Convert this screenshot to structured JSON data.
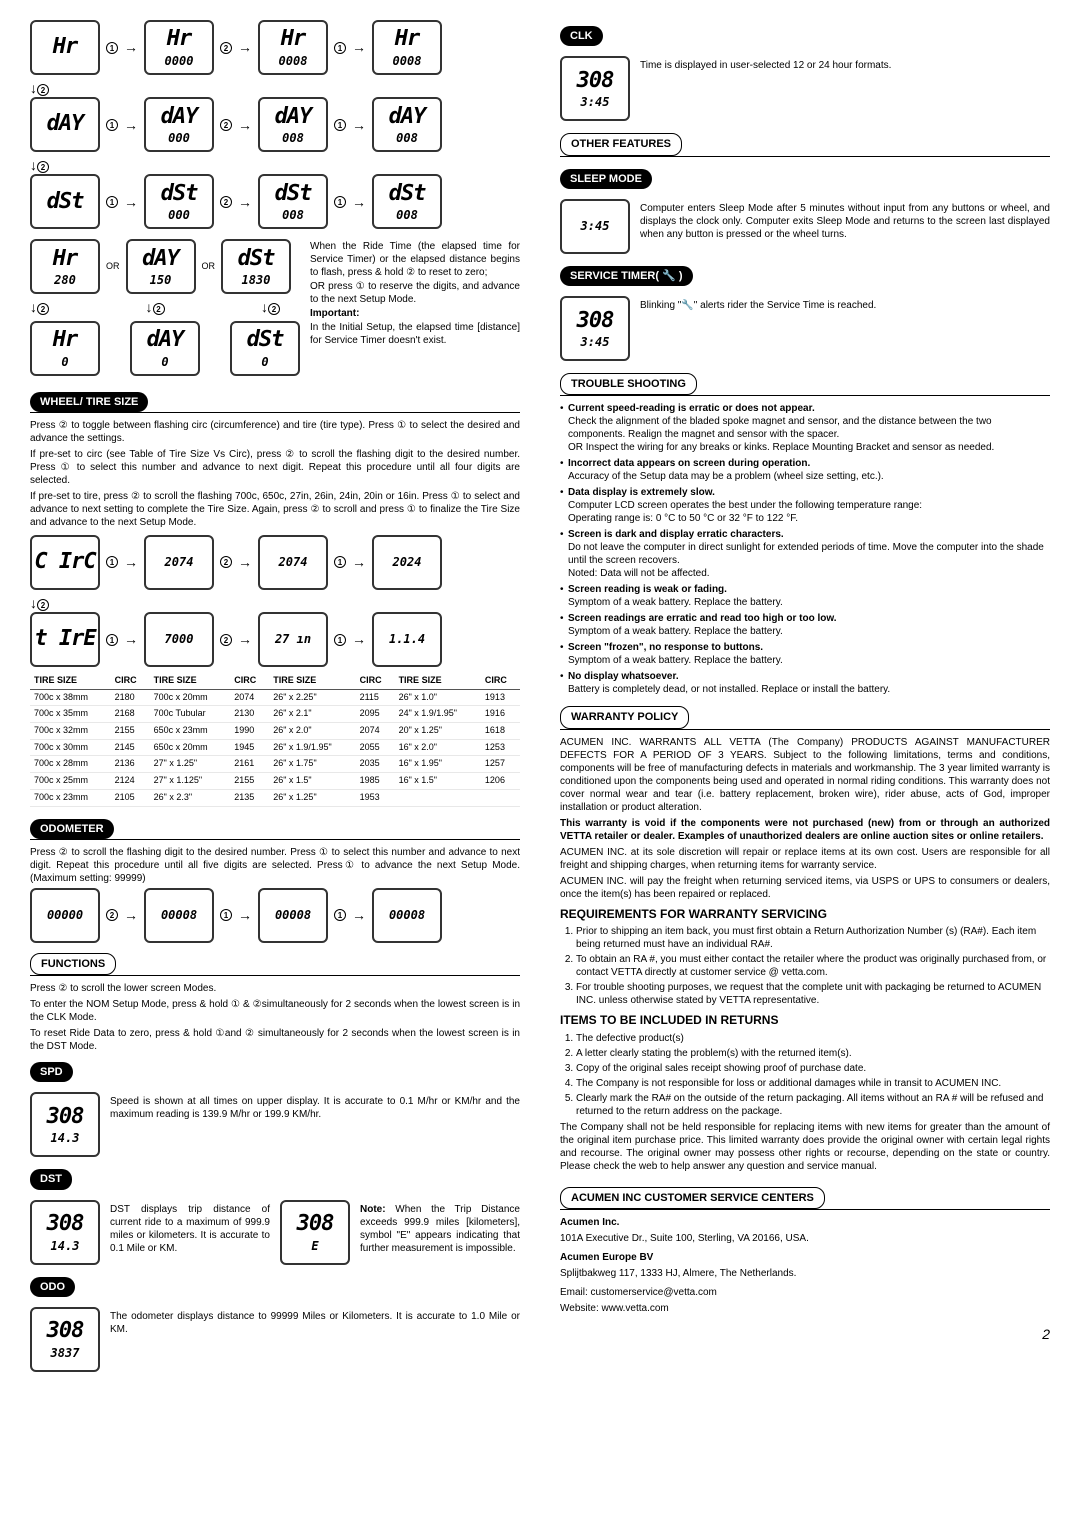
{
  "left": {
    "wheel_title": "WHEEL/ TIRE SIZE",
    "wheel_p1": "Press ② to toggle between flashing circ (circumference) and tire (tire type). Press ① to select the desired and advance the settings.",
    "wheel_p2": "If pre-set to circ (see Table of Tire Size Vs Circ), press ② to scroll the flashing digit to the desired number. Press ① to select this number and advance to next digit. Repeat this procedure until all four digits are selected.",
    "wheel_p3": "If pre-set to tire, press ② to scroll the flashing 700c, 650c, 27in, 26in, 24in, 20in or 16in. Press ① to select and advance to next setting to complete the Tire Size. Again, press ② to scroll and press ① to finalize the Tire Size and advance to the next Setup Mode.",
    "or_text": "OR",
    "service_text1": "When the Ride Time (the elapsed time for Service Timer) or the elapsed distance begins to flash, press & hold ② to reset to zero;",
    "service_text2": "OR press ① to reserve the digits, and advance to the next Setup Mode.",
    "important_label": "Important:",
    "important_text": "In the Initial Setup, the elapsed time [distance] for Service Timer doesn't exist.",
    "tire_table": {
      "headers": [
        "TIRE SIZE",
        "CIRC",
        "TIRE SIZE",
        "CIRC",
        "TIRE SIZE",
        "CIRC",
        "TIRE SIZE",
        "CIRC"
      ],
      "rows": [
        [
          "700c x 38mm",
          "2180",
          "700c x 20mm",
          "2074",
          "26\" x 2.25\"",
          "2115",
          "26\" x 1.0\"",
          "1913"
        ],
        [
          "700c x 35mm",
          "2168",
          "700c Tubular",
          "2130",
          "26\" x 2.1\"",
          "2095",
          "24\" x 1.9/1.95\"",
          "1916"
        ],
        [
          "700c x 32mm",
          "2155",
          "650c x 23mm",
          "1990",
          "26\" x 2.0\"",
          "2074",
          "20\" x 1.25\"",
          "1618"
        ],
        [
          "700c x 30mm",
          "2145",
          "650c x 20mm",
          "1945",
          "26\" x 1.9/1.95\"",
          "2055",
          "16\" x 2.0\"",
          "1253"
        ],
        [
          "700c x 28mm",
          "2136",
          "27\" x 1.25\"",
          "2161",
          "26\" x 1.75\"",
          "2035",
          "16\" x 1.95\"",
          "1257"
        ],
        [
          "700c x 25mm",
          "2124",
          "27\" x 1.125\"",
          "2155",
          "26\" x 1.5\"",
          "1985",
          "16\" x 1.5\"",
          "1206"
        ],
        [
          "700c x 23mm",
          "2105",
          "26\" x 2.3\"",
          "2135",
          "26\" x 1.25\"",
          "1953",
          "",
          ""
        ]
      ]
    },
    "odo_title": "ODOMETER",
    "odo_p": "Press ② to scroll the flashing digit to the desired number. Press ① to select this number and advance to next digit. Repeat this procedure until all five digits are selected. Press① to advance the next Setup Mode. (Maximum setting: 99999)",
    "func_title": "FUNCTIONS",
    "func_p1": "Press  ② to scroll the lower screen Modes.",
    "func_p2": "To enter the NOM Setup Mode, press & hold ① & ②simultaneously for 2 seconds when the lowest screen is in the CLK Mode.",
    "func_p3": "To reset Ride Data to zero, press & hold ①and ② simultaneously for 2 seconds when the lowest screen is in the DST Mode.",
    "spd_title": "SPD",
    "spd_text": "Speed is shown at all times on upper display. It is accurate to 0.1 M/hr or KM/hr and the maximum reading is 139.9 M/hr or 199.9 KM/hr.",
    "dst_title": "DST",
    "dst_text": "DST displays trip distance of current ride to a maximum of 999.9 miles or kilometers. It is accurate to 0.1 Mile or KM.",
    "dst_note_label": "Note:",
    "dst_note": " When the Trip Distance exceeds 999.9 miles [kilometers], symbol \"E\" appears indicating that further measurement is impossible.",
    "odo2_title": "ODO",
    "odo2_text": "The odometer displays distance to 99999 Miles or Kilometers. It is accurate to 1.0 Mile or KM.",
    "lcd_hr": "Hr",
    "lcd_day": "dAY",
    "lcd_dst": "dSt",
    "lcd_0000": "0000",
    "lcd_0008": "0008",
    "lcd_000": "000",
    "lcd_008": "008",
    "lcd_280": "280",
    "lcd_150": "150",
    "lcd_1830": "1830",
    "lcd_0": "0",
    "lcd_circ": "C IrC",
    "lcd_tire_lbl": "t IrE",
    "lcd_2074": "2074",
    "lcd_2024": "2024",
    "lcd_7000": "7000",
    "lcd_27in": "27 ın",
    "lcd_1_1_4": "1.1.4",
    "lcd_00000": "00000",
    "lcd_00008": "00008",
    "lcd_308": "308",
    "lcd_143": "14.3",
    "lcd_3837": "3837",
    "lcd_E": "E"
  },
  "right": {
    "clk_title": "CLK",
    "clk_text": "Time is displayed in user-selected 12 or 24 hour formats.",
    "other_title": "OTHER FEATURES",
    "sleep_title": "SLEEP MODE",
    "sleep_text": "Computer enters Sleep Mode after 5 minutes without input from any buttons or wheel, and displays the clock only. Computer exits Sleep Mode and returns to the screen last displayed when any button is pressed or the wheel turns.",
    "service_title": "SERVICE TIMER( 🔧 )",
    "service_text": "Blinking \"🔧\" alerts rider the Service Time is reached.",
    "trouble_title": "TROUBLE SHOOTING",
    "trouble": [
      {
        "h": "Current speed-reading is erratic or does not appear.",
        "b": "Check the alignment of the bladed spoke magnet and sensor, and the distance between the two components. Realign the magnet and sensor with the spacer.\nOR Inspect the wiring for any breaks or kinks. Replace Mounting Bracket and sensor as needed."
      },
      {
        "h": "Incorrect data appears on screen during operation.",
        "b": "Accuracy of the Setup data may be a problem (wheel size setting, etc.)."
      },
      {
        "h": "Data display is extremely slow.",
        "b": "Computer LCD screen operates the best under the following temperature range:\nOperating range is: 0 °C to 50 °C or 32 °F to 122 °F."
      },
      {
        "h": "Screen is dark and display erratic characters.",
        "b": "Do not leave the computer in direct sunlight for extended periods of time. Move the computer into the shade until the screen recovers.\nNoted: Data will not be affected."
      },
      {
        "h": "Screen reading is weak or fading.",
        "b": "Symptom of a weak battery. Replace the battery."
      },
      {
        "h": "Screen readings are erratic and read too high or too low.",
        "b": "Symptom of a weak battery. Replace the battery."
      },
      {
        "h": "Screen \"frozen\", no response to buttons.",
        "b": "Symptom of a weak battery. Replace the battery."
      },
      {
        "h": "No display whatsoever.",
        "b": "Battery is completely dead, or not installed. Replace or install the battery."
      }
    ],
    "warranty_title": "WARRANTY  POLICY",
    "warranty_p1": "ACUMEN INC. WARRANTS ALL VETTA (The Company) PRODUCTS AGAINST MANUFACTURER DEFECTS FOR A PERIOD OF 3 YEARS. Subject to the following limitations, terms and conditions, components will be free of manufacturing defects in materials and workmanship. The 3 year limited warranty is conditioned upon the components being used and operated in normal riding conditions. This warranty does not cover normal wear and tear (i.e. battery replacement, broken wire), rider abuse, acts of God, improper installation or product alteration.",
    "warranty_p2": "This warranty is void if the components were not purchased (new) from or through an authorized VETTA retailer or dealer. Examples of unauthorized dealers are online auction sites or online retailers.",
    "warranty_p3": "ACUMEN INC. at its sole discretion will repair or replace items at its own cost. Users are responsible for all freight and shipping charges, when returning items for warranty service.",
    "warranty_p4": "ACUMEN INC. will pay the freight when returning serviced items, via USPS or UPS to consumers or dealers, once the item(s) has been repaired or replaced.",
    "req_title": "REQUIREMENTS FOR WARRANTY SERVICING",
    "req_items": [
      "Prior to shipping an item back, you must first obtain a Return Authorization Number (s) (RA#). Each item being returned must have an individual RA#.",
      "To obtain an RA #, you must either contact the retailer where the product was originally purchased from, or contact VETTA directly at customer service @ vetta.com.",
      "For trouble shooting purposes, we request that the complete unit with packaging be returned to ACUMEN INC. unless otherwise stated by VETTA representative."
    ],
    "items_title": "ITEMS TO BE INCLUDED IN RETURNS",
    "items_list": [
      "The defective product(s)",
      "A letter clearly stating the problem(s) with the returned item(s).",
      "Copy of the original sales receipt showing proof of purchase date.",
      "The Company is not responsible for loss or additional damages while in transit to ACUMEN INC.",
      "Clearly mark the RA# on the outside of the return packaging. All items without an RA # will be refused and returned to the return address on the package."
    ],
    "warranty_p5": "The Company shall not be held responsible for replacing items with new items for greater than the amount of the original item purchase price. This limited warranty does provide the original owner with certain legal rights and recourse. The original owner may possess other rights or recourse, depending on the state or country. Please check the web to help answer any question and service manual.",
    "cs_title": "ACUMEN INC CUSTOMER SERVICE CENTERS",
    "cs_us_name": "Acumen Inc.",
    "cs_us_addr": "101A Executive Dr., Suite 100, Sterling, VA 20166, USA.",
    "cs_eu_name": "Acumen Europe BV",
    "cs_eu_addr": "Splijtbakweg 117, 1333 HJ, Almere, The Netherlands.",
    "cs_email": "Email: customerservice@vetta.com",
    "cs_web": "Website: www.vetta.com",
    "lcd_345": "3:45",
    "pagenum": "2"
  }
}
